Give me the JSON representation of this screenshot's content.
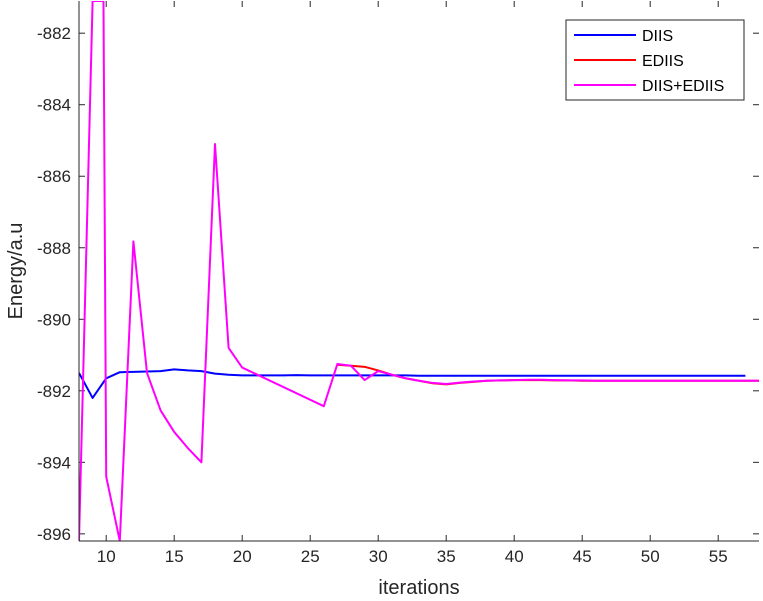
{
  "chart_data": {
    "type": "line",
    "xlabel": "iterations",
    "ylabel": "Energy/a.u",
    "xlim": [
      8,
      58
    ],
    "ylim": [
      -896.2,
      -881.1
    ],
    "xticks": [
      10,
      15,
      20,
      25,
      30,
      35,
      40,
      45,
      50,
      55
    ],
    "yticks": [
      -896,
      -894,
      -892,
      -890,
      -888,
      -886,
      -884,
      -882
    ],
    "legend_position": "top-right",
    "series": [
      {
        "name": "DIIS",
        "color": "#0000ff",
        "x": [
          8,
          9,
          10,
          11,
          12,
          13,
          14,
          15,
          16,
          17,
          18,
          19,
          20,
          21,
          22,
          23,
          24,
          25,
          26,
          27,
          28,
          29,
          30,
          31,
          32,
          33,
          34,
          35,
          36,
          37,
          38,
          39,
          40,
          41,
          42,
          43,
          44,
          45,
          46,
          47,
          48,
          49,
          50,
          51,
          52,
          53,
          54,
          55,
          56,
          57
        ],
        "y": [
          -891.5,
          -892.2,
          -891.65,
          -891.48,
          -891.47,
          -891.46,
          -891.45,
          -891.4,
          -891.43,
          -891.45,
          -891.52,
          -891.55,
          -891.57,
          -891.57,
          -891.57,
          -891.57,
          -891.56,
          -891.57,
          -891.57,
          -891.57,
          -891.57,
          -891.57,
          -891.57,
          -891.57,
          -891.57,
          -891.58,
          -891.58,
          -891.58,
          -891.58,
          -891.58,
          -891.58,
          -891.58,
          -891.58,
          -891.58,
          -891.58,
          -891.58,
          -891.58,
          -891.58,
          -891.58,
          -891.58,
          -891.58,
          -891.58,
          -891.58,
          -891.58,
          -891.58,
          -891.58,
          -891.58,
          -891.58,
          -891.58,
          -891.58
        ]
      },
      {
        "name": "EDIIS",
        "color": "#ff0000",
        "x": [
          27,
          28,
          29,
          30,
          31,
          32,
          33,
          34,
          35,
          36,
          37,
          38,
          39,
          40,
          41,
          42,
          43,
          44,
          45,
          46,
          47,
          48,
          49,
          50,
          51,
          52,
          53,
          54,
          55,
          56,
          57,
          58
        ],
        "y": [
          -891.27,
          -891.3,
          -891.33,
          -891.43,
          -891.55,
          -891.65,
          -891.72,
          -891.79,
          -891.82,
          -891.78,
          -891.75,
          -891.72,
          -891.71,
          -891.7,
          -891.7,
          -891.7,
          -891.71,
          -891.71,
          -891.72,
          -891.72,
          -891.72,
          -891.72,
          -891.72,
          -891.72,
          -891.72,
          -891.72,
          -891.72,
          -891.72,
          -891.72,
          -891.72,
          -891.72,
          -891.72
        ]
      },
      {
        "name": "DIIS+EDIIS",
        "color": "#ff00ff",
        "x": [
          8,
          9,
          9.8,
          10,
          11,
          12,
          13,
          14,
          15,
          16,
          17,
          18,
          19,
          20,
          26,
          27,
          28,
          29,
          30,
          31,
          32,
          33,
          34,
          35,
          36,
          37,
          38,
          39,
          40,
          41,
          42,
          43,
          44,
          45,
          46,
          47,
          48,
          49,
          50,
          51,
          52,
          53,
          54,
          55,
          56,
          57,
          58
        ],
        "y": [
          -896.2,
          -881.1,
          -881.1,
          -894.4,
          -896.2,
          -887.82,
          -891.5,
          -892.55,
          -893.15,
          -893.6,
          -894.0,
          -885.1,
          -890.8,
          -891.35,
          -892.43,
          -891.25,
          -891.3,
          -891.7,
          -891.45,
          -891.55,
          -891.65,
          -891.72,
          -891.78,
          -891.81,
          -891.77,
          -891.74,
          -891.72,
          -891.71,
          -891.7,
          -891.69,
          -891.69,
          -891.7,
          -891.71,
          -891.71,
          -891.72,
          -891.72,
          -891.72,
          -891.72,
          -891.72,
          -891.72,
          -891.72,
          -891.72,
          -891.72,
          -891.72,
          -891.72,
          -891.72,
          -891.72
        ]
      }
    ]
  }
}
